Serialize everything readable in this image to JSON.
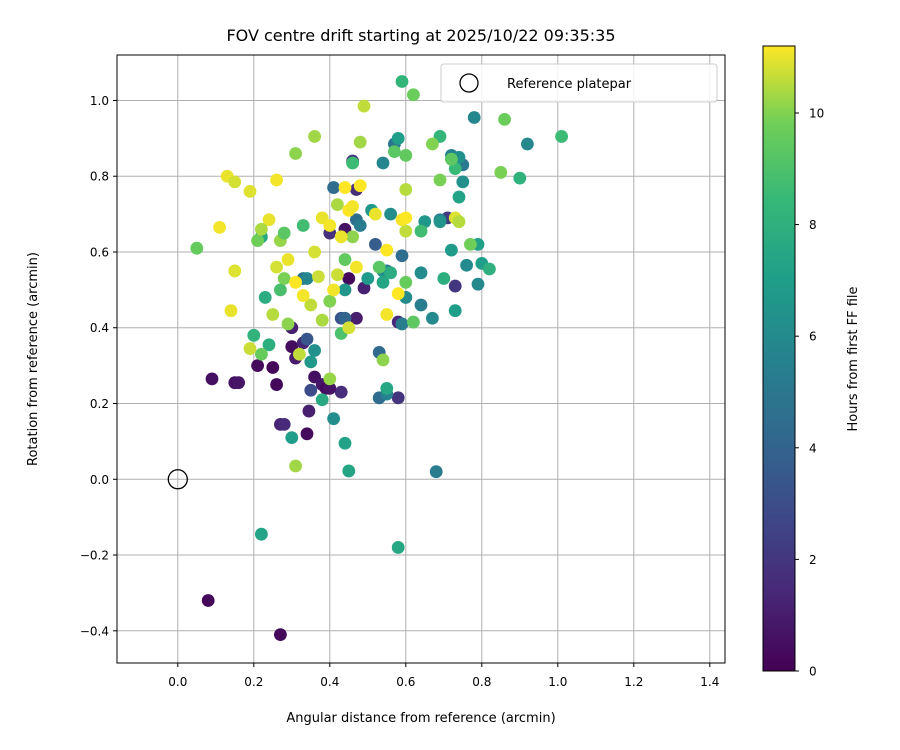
{
  "chart_data": {
    "type": "scatter",
    "title": "FOV centre drift starting at 2025/10/22 09:35:35",
    "xlabel": "Angular distance from reference (arcmin)",
    "ylabel": "Rotation from reference (arcmin)",
    "xlim": [
      -0.16,
      1.44
    ],
    "ylim": [
      -0.485,
      1.12
    ],
    "xticks": [
      0.0,
      0.2,
      0.4,
      0.6,
      0.8,
      1.0,
      1.2,
      1.4
    ],
    "yticks": [
      -0.4,
      -0.2,
      0.0,
      0.2,
      0.4,
      0.6,
      0.8,
      1.0
    ],
    "xtick_labels": [
      "0.0",
      "0.2",
      "0.4",
      "0.6",
      "0.8",
      "1.0",
      "1.2",
      "1.4"
    ],
    "ytick_labels": [
      "−0.4",
      "−0.2",
      "0.0",
      "0.2",
      "0.4",
      "0.6",
      "0.8",
      "1.0"
    ],
    "grid": true,
    "legend": {
      "label": "Reference platepar",
      "position": "top-right"
    },
    "reference_point": {
      "x": 0.0,
      "y": 0.0
    },
    "colorbar": {
      "label": "Hours from first FF file",
      "colormap": "viridis",
      "range": [
        0,
        11.2
      ],
      "ticks": [
        0,
        2,
        4,
        6,
        8,
        10
      ],
      "tick_labels": [
        "0",
        "2",
        "4",
        "6",
        "8",
        "10"
      ]
    },
    "points": [
      [
        0.08,
        -0.32,
        0.2
      ],
      [
        0.27,
        -0.41,
        0.3
      ],
      [
        0.09,
        0.265,
        0.5
      ],
      [
        0.15,
        0.255,
        0.6
      ],
      [
        0.16,
        0.255,
        0.7
      ],
      [
        0.21,
        0.3,
        0.4
      ],
      [
        0.25,
        0.295,
        0.2
      ],
      [
        0.26,
        0.25,
        0.3
      ],
      [
        0.3,
        0.35,
        0.4
      ],
      [
        0.31,
        0.32,
        0.9
      ],
      [
        0.33,
        0.36,
        1.3
      ],
      [
        0.36,
        0.27,
        0.5
      ],
      [
        0.38,
        0.25,
        0.8
      ],
      [
        0.39,
        0.24,
        0.3
      ],
      [
        0.43,
        0.23,
        1.6
      ],
      [
        0.4,
        0.24,
        0.6
      ],
      [
        0.34,
        0.12,
        0.4
      ],
      [
        0.345,
        0.18,
        1.1
      ],
      [
        0.27,
        0.145,
        1.3
      ],
      [
        0.28,
        0.145,
        1.5
      ],
      [
        0.58,
        0.215,
        1.9
      ],
      [
        0.45,
        0.53,
        0.3
      ],
      [
        0.47,
        0.765,
        1.6
      ],
      [
        0.47,
        0.425,
        1.0
      ],
      [
        0.49,
        0.505,
        1.2
      ],
      [
        0.58,
        0.415,
        1.5
      ],
      [
        0.73,
        0.51,
        2.0
      ],
      [
        0.3,
        0.4,
        1.1
      ],
      [
        0.44,
        0.66,
        0.6
      ],
      [
        0.46,
        0.84,
        1.9
      ],
      [
        0.4,
        0.65,
        1.7
      ],
      [
        0.71,
        0.69,
        2.1
      ],
      [
        0.35,
        0.235,
        2.9
      ],
      [
        0.34,
        0.37,
        3.4
      ],
      [
        0.43,
        0.425,
        3.3
      ],
      [
        0.44,
        0.425,
        4.0
      ],
      [
        0.53,
        0.215,
        4.4
      ],
      [
        0.52,
        0.62,
        3.7
      ],
      [
        0.41,
        0.77,
        4.4
      ],
      [
        0.53,
        0.335,
        4.3
      ],
      [
        0.33,
        0.53,
        4.8
      ],
      [
        0.59,
        0.59,
        4.5
      ],
      [
        0.47,
        0.685,
        4.6
      ],
      [
        0.48,
        0.67,
        5.2
      ],
      [
        0.55,
        0.55,
        5.0
      ],
      [
        0.57,
        0.885,
        4.9
      ],
      [
        0.59,
        0.41,
        5.3
      ],
      [
        0.64,
        0.46,
        5.4
      ],
      [
        0.68,
        0.02,
        5.2
      ],
      [
        0.75,
        0.83,
        5.1
      ],
      [
        0.72,
        0.855,
        5.5
      ],
      [
        0.69,
        0.685,
        5.6
      ],
      [
        0.78,
        0.955,
        5.8
      ],
      [
        0.92,
        0.885,
        5.9
      ],
      [
        0.79,
        0.515,
        5.9
      ],
      [
        0.76,
        0.565,
        6.0
      ],
      [
        0.74,
        0.85,
        6.3
      ],
      [
        0.75,
        0.785,
        6.3
      ],
      [
        0.55,
        0.225,
        5.6
      ],
      [
        0.6,
        0.48,
        6.0
      ],
      [
        0.64,
        0.545,
        6.1
      ],
      [
        0.67,
        0.425,
        6.0
      ],
      [
        0.56,
        0.7,
        6.2
      ],
      [
        0.54,
        0.835,
        5.8
      ],
      [
        0.65,
        0.68,
        6.6
      ],
      [
        0.69,
        0.68,
        6.5
      ],
      [
        0.73,
        0.445,
        7.0
      ],
      [
        0.36,
        0.34,
        6.3
      ],
      [
        0.34,
        0.53,
        5.7
      ],
      [
        0.41,
        0.16,
        6.2
      ],
      [
        0.54,
        0.55,
        6.3
      ],
      [
        0.44,
        0.5,
        6.6
      ],
      [
        0.5,
        0.53,
        6.8
      ],
      [
        0.51,
        0.71,
        6.7
      ],
      [
        0.35,
        0.31,
        6.7
      ],
      [
        0.58,
        0.9,
        7.0
      ],
      [
        0.79,
        0.62,
        7.1
      ],
      [
        0.8,
        0.57,
        7.0
      ],
      [
        0.72,
        0.605,
        6.8
      ],
      [
        0.74,
        0.745,
        7.2
      ],
      [
        0.3,
        0.11,
        7.0
      ],
      [
        0.44,
        0.095,
        7.2
      ],
      [
        0.22,
        -0.145,
        7.3
      ],
      [
        0.58,
        -0.18,
        7.5
      ],
      [
        0.45,
        0.022,
        7.4
      ],
      [
        0.55,
        0.24,
        7.5
      ],
      [
        0.54,
        0.52,
        7.4
      ],
      [
        0.38,
        0.21,
        7.6
      ],
      [
        0.22,
        0.64,
        7.6
      ],
      [
        0.23,
        0.48,
        7.8
      ],
      [
        0.24,
        0.355,
        7.9
      ],
      [
        0.2,
        0.38,
        8.2
      ],
      [
        0.56,
        0.545,
        7.8
      ],
      [
        0.7,
        0.53,
        7.9
      ],
      [
        0.82,
        0.555,
        8.0
      ],
      [
        0.9,
        0.795,
        8.1
      ],
      [
        1.01,
        0.905,
        8.6
      ],
      [
        0.69,
        0.905,
        8.3
      ],
      [
        0.59,
        1.05,
        8.3
      ],
      [
        0.73,
        0.82,
        8.5
      ],
      [
        0.46,
        0.835,
        8.6
      ],
      [
        0.64,
        0.655,
        8.7
      ],
      [
        0.27,
        0.5,
        8.9
      ],
      [
        0.33,
        0.67,
        8.7
      ],
      [
        0.53,
        0.56,
        9.3
      ],
      [
        0.57,
        0.865,
        9.3
      ],
      [
        0.6,
        0.855,
        9.5
      ],
      [
        0.6,
        0.52,
        9.6
      ],
      [
        0.62,
        0.415,
        9.4
      ],
      [
        0.62,
        1.015,
        9.7
      ],
      [
        0.86,
        0.95,
        9.7
      ],
      [
        0.85,
        0.81,
        9.9
      ],
      [
        0.77,
        0.62,
        9.8
      ],
      [
        0.69,
        0.79,
        9.9
      ],
      [
        0.67,
        0.885,
        10.0
      ],
      [
        0.72,
        0.845,
        9.4
      ],
      [
        0.54,
        0.315,
        10.1
      ],
      [
        0.4,
        0.265,
        10.2
      ],
      [
        0.31,
        0.035,
        10.3
      ],
      [
        0.22,
        0.33,
        9.6
      ],
      [
        0.05,
        0.61,
        9.6
      ],
      [
        0.21,
        0.63,
        9.8
      ],
      [
        0.28,
        0.53,
        9.9
      ],
      [
        0.29,
        0.41,
        10.1
      ],
      [
        0.31,
        0.86,
        10.1
      ],
      [
        0.36,
        0.905,
        10.3
      ],
      [
        0.42,
        0.725,
        10.4
      ],
      [
        0.46,
        0.64,
        10.1
      ],
      [
        0.48,
        0.89,
        10.3
      ],
      [
        0.49,
        0.985,
        10.6
      ],
      [
        0.6,
        0.765,
        10.5
      ],
      [
        0.6,
        0.655,
        10.6
      ],
      [
        0.38,
        0.42,
        10.4
      ],
      [
        0.43,
        0.385,
        9.0
      ],
      [
        0.44,
        0.58,
        9.5
      ],
      [
        0.4,
        0.47,
        10.0
      ],
      [
        0.35,
        0.46,
        10.6
      ],
      [
        0.37,
        0.535,
        10.7
      ],
      [
        0.13,
        0.8,
        11.0
      ],
      [
        0.15,
        0.785,
        10.8
      ],
      [
        0.19,
        0.76,
        10.9
      ],
      [
        0.24,
        0.685,
        11.0
      ],
      [
        0.26,
        0.79,
        11.1
      ],
      [
        0.11,
        0.665,
        11.1
      ],
      [
        0.14,
        0.445,
        11.0
      ],
      [
        0.15,
        0.55,
        10.9
      ],
      [
        0.19,
        0.345,
        10.7
      ],
      [
        0.25,
        0.435,
        10.5
      ],
      [
        0.26,
        0.56,
        10.8
      ],
      [
        0.29,
        0.58,
        11.0
      ],
      [
        0.31,
        0.52,
        11.2
      ],
      [
        0.33,
        0.485,
        11.1
      ],
      [
        0.36,
        0.6,
        10.8
      ],
      [
        0.38,
        0.69,
        11.0
      ],
      [
        0.4,
        0.67,
        11.1
      ],
      [
        0.41,
        0.5,
        11.1
      ],
      [
        0.43,
        0.64,
        11.0
      ],
      [
        0.44,
        0.77,
        11.2
      ],
      [
        0.45,
        0.71,
        11.2
      ],
      [
        0.46,
        0.72,
        11.1
      ],
      [
        0.47,
        0.56,
        11.1
      ],
      [
        0.48,
        0.775,
        11.2
      ],
      [
        0.52,
        0.7,
        11.0
      ],
      [
        0.55,
        0.435,
        11.1
      ],
      [
        0.55,
        0.605,
        11.2
      ],
      [
        0.58,
        0.49,
        11.2
      ],
      [
        0.59,
        0.685,
        11.1
      ],
      [
        0.6,
        0.69,
        11.2
      ],
      [
        0.73,
        0.69,
        10.9
      ],
      [
        0.74,
        0.68,
        10.5
      ],
      [
        0.45,
        0.4,
        10.8
      ],
      [
        0.42,
        0.54,
        10.7
      ],
      [
        0.32,
        0.33,
        10.6
      ],
      [
        0.27,
        0.63,
        10.2
      ],
      [
        0.28,
        0.65,
        9.3
      ],
      [
        0.22,
        0.66,
        10.4
      ]
    ]
  }
}
